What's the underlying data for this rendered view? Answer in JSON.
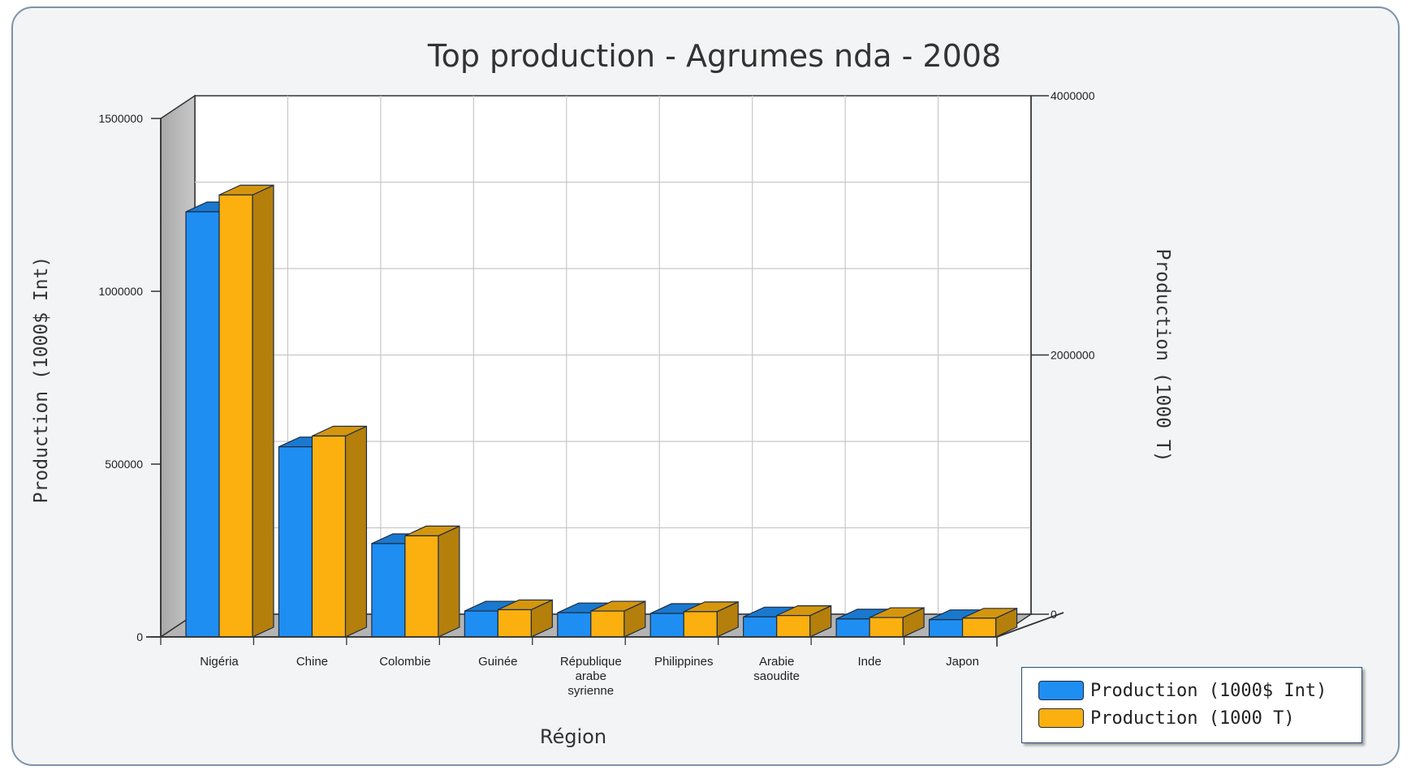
{
  "chart_data": {
    "type": "bar",
    "title": "Top production - Agrumes nda - 2008",
    "xlabel": "Région",
    "ylabel_left": "Production (1000$ Int)",
    "ylabel_right": "Production (1000 T)",
    "categories": [
      "Nigéria",
      "Chine",
      "Colombie",
      "Guinée",
      "République arabe syrienne",
      "Philippines",
      "Arabie saoudite",
      "Inde",
      "Japon"
    ],
    "series": [
      {
        "name": "Production (1000$ Int)",
        "axis": "left",
        "color": "#1f8ef2",
        "values": [
          1230000,
          550000,
          270000,
          75000,
          70000,
          68000,
          58000,
          52000,
          50000
        ]
      },
      {
        "name": "Production (1000 T)",
        "axis": "right",
        "color": "#fbb010",
        "values": [
          3410000,
          1550000,
          780000,
          210000,
          200000,
          195000,
          165000,
          150000,
          145000
        ]
      }
    ],
    "ylim_left": [
      0,
      1500000
    ],
    "ylim_right": [
      0,
      4000000
    ],
    "yticks_left": [
      0,
      500000,
      1000000,
      1500000
    ],
    "yticks_right": [
      0,
      2000000,
      4000000
    ],
    "grid": true,
    "legend_position": "bottom-right"
  }
}
